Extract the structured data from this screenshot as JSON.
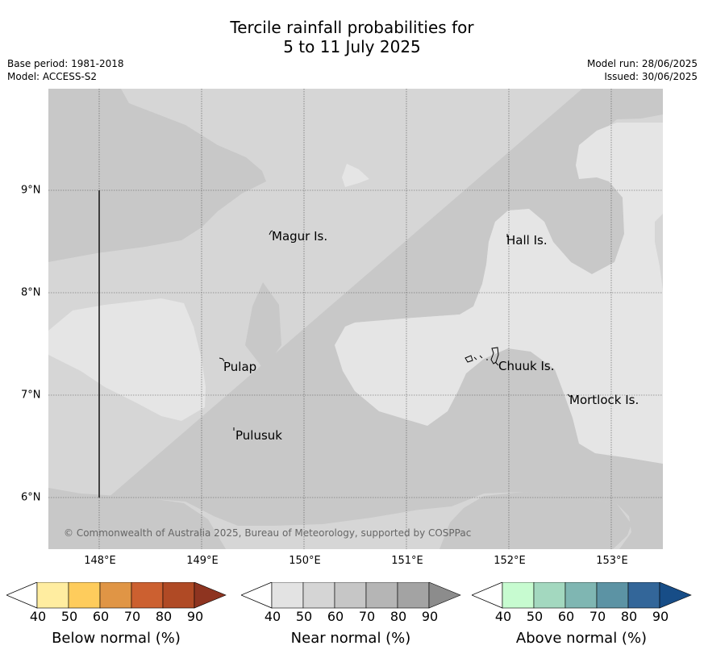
{
  "title": {
    "line1": "Tercile rainfall probabilities for",
    "line2": "5 to 11 July 2025"
  },
  "meta": {
    "base_period": "Base period: 1981-2018",
    "model": "Model: ACCESS-S2",
    "model_run": "Model run: 28/06/2025",
    "issued": "Issued: 30/06/2025"
  },
  "axes": {
    "lat_labels": [
      "9°N",
      "8°N",
      "7°N",
      "6°N"
    ],
    "lon_labels": [
      "148°E",
      "149°E",
      "150°E",
      "151°E",
      "152°E",
      "153°E"
    ]
  },
  "places": {
    "magur": "Magur Is.",
    "hall": "Hall Is.",
    "pulap": "Pulap",
    "chuuk": "Chuuk Is.",
    "mortlock": "Mortlock Is.",
    "pulusuk": "Pulusuk"
  },
  "copyright": "© Commonwealth of Australia 2025, Bureau of Meteorology, supported by COSPPac",
  "colorbars": {
    "ticks": [
      "40",
      "50",
      "60",
      "70",
      "80",
      "90"
    ],
    "below": {
      "title": "Below normal (%)",
      "colors": [
        "#ffeda0",
        "#fecc5c",
        "#e09545",
        "#cc6030",
        "#b04a25",
        "#8e3420"
      ]
    },
    "near": {
      "title": "Near normal (%)",
      "colors": [
        "#e3e3e3",
        "#d5d5d5",
        "#c6c6c6",
        "#b5b5b5",
        "#a3a3a3",
        "#8c8c8c"
      ]
    },
    "above": {
      "title": "Above normal (%)",
      "colors": [
        "#c7fbd0",
        "#a3d8bf",
        "#7fb6b2",
        "#5c93a4",
        "#336699",
        "#174d87"
      ]
    }
  },
  "legend_colors": {
    "near_40_50": "#e5e5e5",
    "near_50_60": "#d6d6d6",
    "near_60_70": "#c8c8c8"
  }
}
